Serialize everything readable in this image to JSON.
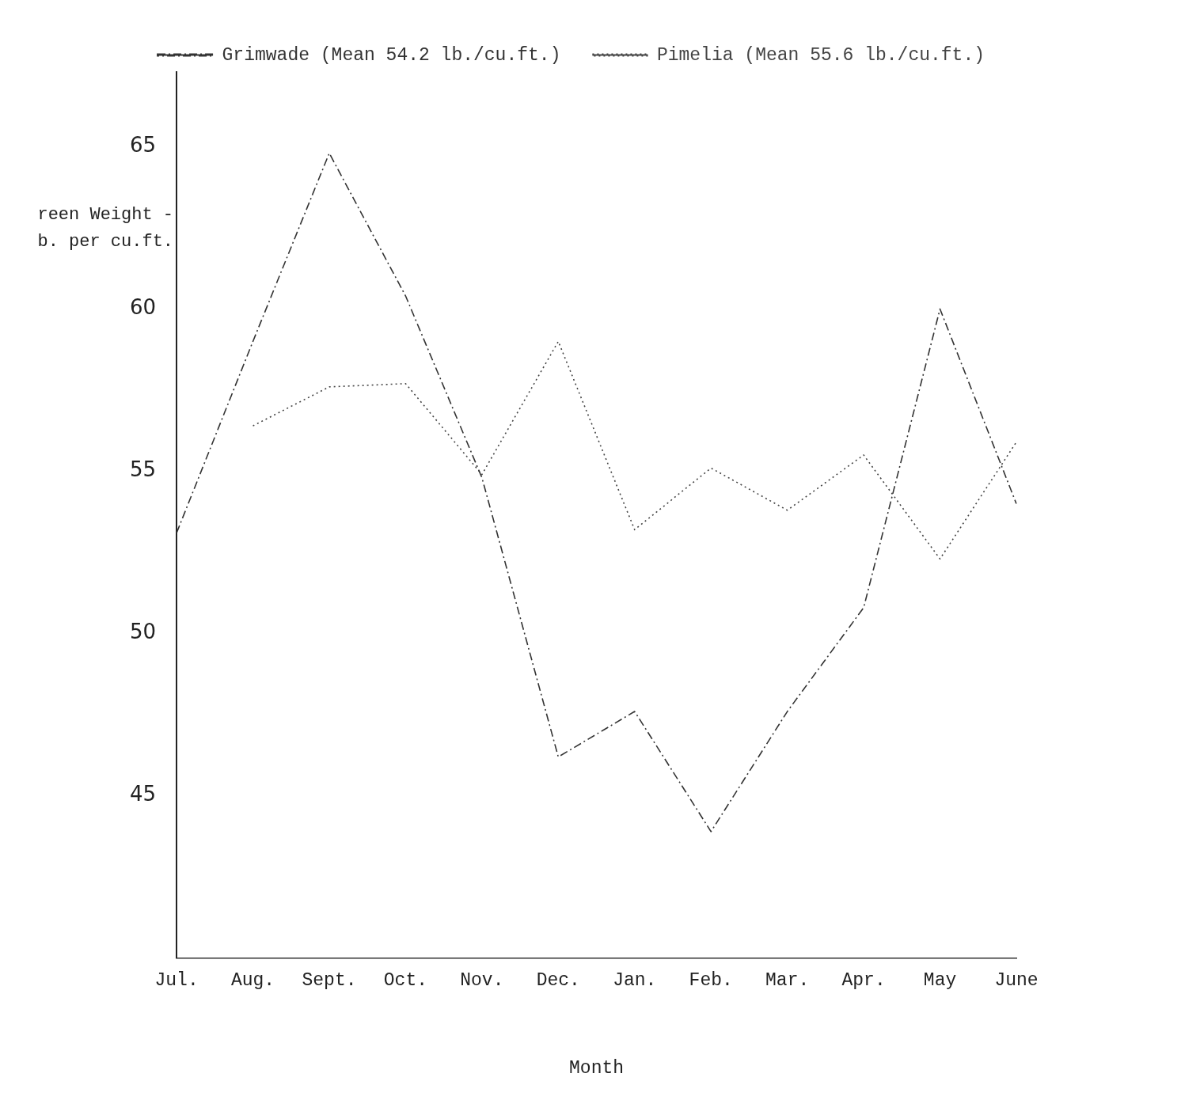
{
  "chart_data": {
    "type": "line",
    "xlabel": "Month",
    "ylabel": "reen Weight -\nb. per cu.ft.",
    "categories": [
      "Jul.",
      "Aug.",
      "Sept.",
      "Oct.",
      "Nov.",
      "Dec.",
      "Jan.",
      "Feb.",
      "Mar.",
      "Apr.",
      "May",
      "June"
    ],
    "series": [
      {
        "name": "Grimwade (Mean 54.2 lb./cu.ft.)",
        "color": "#333333",
        "line_style": "dashed",
        "values": [
          53.1,
          59.0,
          64.8,
          60.4,
          54.8,
          46.2,
          47.6,
          43.9,
          47.6,
          50.8,
          60.0,
          54.0
        ]
      },
      {
        "name": "Pimelia (Mean 55.6 lb./cu.ft.)",
        "color": "#444444",
        "line_style": "dotted",
        "values": [
          null,
          56.4,
          57.6,
          57.7,
          54.9,
          59.0,
          53.2,
          55.1,
          53.8,
          55.5,
          52.3,
          55.9
        ]
      }
    ],
    "ylim": [
      40,
      67.3
    ],
    "yticks": [
      45,
      50,
      55,
      60,
      65
    ],
    "grid": false,
    "legend": "top right",
    "marker": "none"
  }
}
